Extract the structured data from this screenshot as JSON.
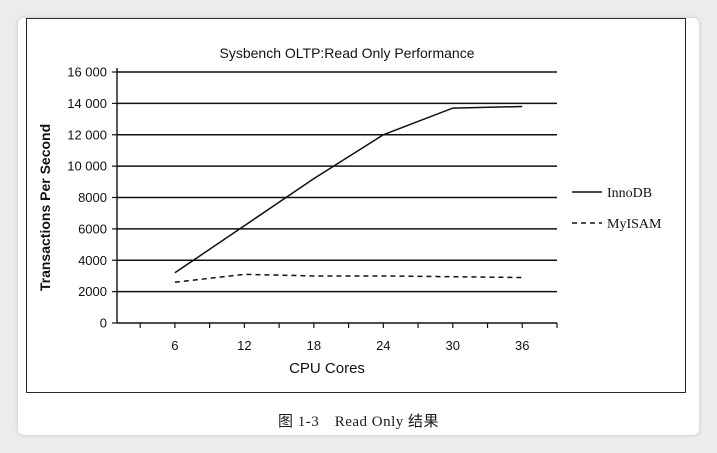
{
  "chart_data": {
    "type": "line",
    "title": "Sysbench OLTP:Read Only Performance",
    "xlabel": "CPU Cores",
    "ylabel": "Transactions Per Second",
    "x_ticks": [
      6,
      12,
      18,
      24,
      30,
      36
    ],
    "y_ticks": [
      0,
      2000,
      4000,
      6000,
      8000,
      10000,
      12000,
      14000,
      16000
    ],
    "y_tick_labels": [
      "0",
      "2000",
      "4000",
      "6000",
      "8000",
      "10 000",
      "12 000",
      "14 000",
      "16 000"
    ],
    "xlim": [
      1,
      39
    ],
    "ylim": [
      0,
      16000
    ],
    "grid": "horizontal",
    "legend_position": "right",
    "series": [
      {
        "name": "InnoDB",
        "style": "solid",
        "x": [
          6,
          12,
          18,
          24,
          30,
          36
        ],
        "values": [
          3200,
          6200,
          9200,
          12000,
          13700,
          13800
        ]
      },
      {
        "name": "MyISAM",
        "style": "dashed",
        "x": [
          6,
          12,
          18,
          24,
          30,
          36
        ],
        "values": [
          2600,
          3100,
          3000,
          3000,
          2950,
          2900
        ]
      }
    ]
  },
  "caption": "图 1-3　Read Only 结果"
}
